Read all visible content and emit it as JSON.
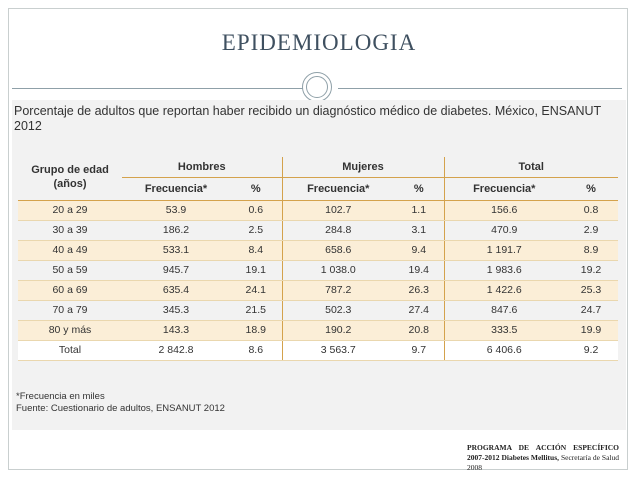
{
  "slide": {
    "title": "EPIDEMIOLOGIA"
  },
  "figure": {
    "caption": "Porcentaje de adultos que reportan haber recibido un diagnóstico médico de diabetes. México, ENSANUT 2012",
    "table": {
      "age_header_line1": "Grupo de edad",
      "age_header_line2": "(años)",
      "groups": [
        "Hombres",
        "Mujeres",
        "Total"
      ],
      "freq_label": "Frecuencia*",
      "pct_label": "%",
      "rows": [
        {
          "age": "20 a 29",
          "h_f": "53.9",
          "h_p": "0.6",
          "m_f": "102.7",
          "m_p": "1.1",
          "t_f": "156.6",
          "t_p": "0.8"
        },
        {
          "age": "30 a 39",
          "h_f": "186.2",
          "h_p": "2.5",
          "m_f": "284.8",
          "m_p": "3.1",
          "t_f": "470.9",
          "t_p": "2.9"
        },
        {
          "age": "40 a 49",
          "h_f": "533.1",
          "h_p": "8.4",
          "m_f": "658.6",
          "m_p": "9.4",
          "t_f": "1 191.7",
          "t_p": "8.9"
        },
        {
          "age": "50 a 59",
          "h_f": "945.7",
          "h_p": "19.1",
          "m_f": "1 038.0",
          "m_p": "19.4",
          "t_f": "1 983.6",
          "t_p": "19.2"
        },
        {
          "age": "60 a 69",
          "h_f": "635.4",
          "h_p": "24.1",
          "m_f": "787.2",
          "m_p": "26.3",
          "t_f": "1 422.6",
          "t_p": "25.3"
        },
        {
          "age": "70 a 79",
          "h_f": "345.3",
          "h_p": "21.5",
          "m_f": "502.3",
          "m_p": "27.4",
          "t_f": "847.6",
          "t_p": "24.7"
        },
        {
          "age": "80 y más",
          "h_f": "143.3",
          "h_p": "18.9",
          "m_f": "190.2",
          "m_p": "20.8",
          "t_f": "333.5",
          "t_p": "19.9"
        },
        {
          "age": "Total",
          "h_f": "2 842.8",
          "h_p": "8.6",
          "m_f": "3 563.7",
          "m_p": "9.7",
          "t_f": "6 406.6",
          "t_p": "9.2"
        }
      ]
    },
    "note_1": "*Frecuencia en miles",
    "note_2": "Fuente: Cuestionario de adultos, ENSANUT 2012"
  },
  "credit": {
    "part1": "PROGRAMA DE ACCIÓN ESPECÍFICO 2007-2012 Diabetes Mellitus,",
    "part2": " Secretaría de Salud 2008"
  }
}
